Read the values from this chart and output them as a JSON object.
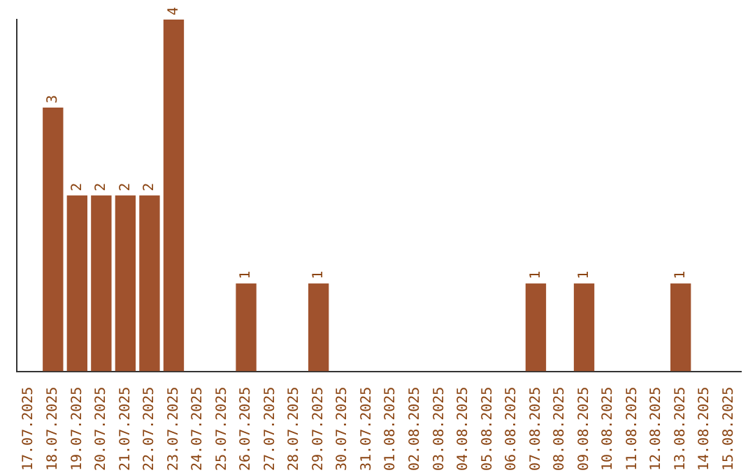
{
  "chart_data": {
    "type": "bar",
    "categories": [
      "17.07.2025",
      "18.07.2025",
      "19.07.2025",
      "20.07.2025",
      "21.07.2025",
      "22.07.2025",
      "23.07.2025",
      "24.07.2025",
      "25.07.2025",
      "26.07.2025",
      "27.07.2025",
      "28.07.2025",
      "29.07.2025",
      "30.07.2025",
      "31.07.2025",
      "01.08.2025",
      "02.08.2025",
      "03.08.2025",
      "04.08.2025",
      "05.08.2025",
      "06.08.2025",
      "07.08.2025",
      "08.08.2025",
      "09.08.2025",
      "10.08.2025",
      "11.08.2025",
      "12.08.2025",
      "13.08.2025",
      "14.08.2025",
      "15.08.2025"
    ],
    "values": [
      0,
      3,
      2,
      2,
      2,
      2,
      4,
      0,
      0,
      1,
      0,
      0,
      1,
      0,
      0,
      0,
      0,
      0,
      0,
      0,
      0,
      1,
      0,
      1,
      0,
      0,
      0,
      1,
      0,
      0
    ],
    "value_labels": [
      null,
      "3",
      "2",
      "2",
      "2",
      "2",
      "4",
      null,
      null,
      "1",
      null,
      null,
      "1",
      null,
      null,
      null,
      null,
      null,
      null,
      null,
      null,
      "1",
      null,
      "1",
      null,
      null,
      null,
      "1",
      null,
      null
    ],
    "color": "#a0522d",
    "grid": false,
    "legend": false,
    "tick_labels": "x"
  }
}
